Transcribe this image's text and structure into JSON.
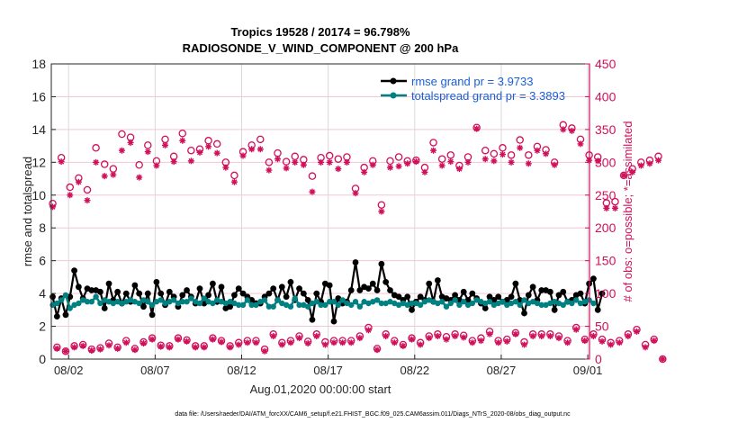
{
  "chart_data": {
    "type": "line",
    "title": "Tropics 19528 / 20174 = 96.798%",
    "subtitle": "RADIOSONDE_V_WIND_COMPONENT @ 200 hPa",
    "xlabel": "Aug.01,2020 00:00:00 start",
    "ylabel": "rmse and totalspread",
    "ylabel_right": "# of obs: o=possible; *=assimilated",
    "footer": "data file: /Users/raeder/DAI/ATM_forcXX/CAM6_setup/f.e21.FHIST_BGC.f09_025.CAM6assim.011/Diags_NTrS_2020-08/obs_diag_output.nc",
    "xlim_days": [
      0,
      31.1
    ],
    "x_ticks": [
      {
        "day": 1,
        "label": "08/02"
      },
      {
        "day": 6,
        "label": "08/07"
      },
      {
        "day": 11,
        "label": "08/12"
      },
      {
        "day": 16,
        "label": "08/17"
      },
      {
        "day": 21,
        "label": "08/22"
      },
      {
        "day": 26,
        "label": "08/27"
      },
      {
        "day": 31,
        "label": "09/01"
      }
    ],
    "ylim": [
      0,
      18
    ],
    "y_ticks": [
      0,
      2,
      4,
      6,
      8,
      10,
      12,
      14,
      16,
      18
    ],
    "ylim_right": [
      0,
      450
    ],
    "y_ticks_right": [
      0,
      50,
      100,
      150,
      200,
      250,
      300,
      350,
      400,
      450
    ],
    "grid": "x-gridlines grey, y-gridlines pink (right axis)",
    "legend": {
      "placement": "top-right",
      "entries": [
        {
          "label": "rmse grand pr = 3.9733",
          "color": "#000000"
        },
        {
          "label": "totalspread grand pr = 3.3893",
          "color": "#008080"
        }
      ]
    },
    "time_step_days": 0.25,
    "series": [
      {
        "name": "rmse",
        "axis": "left",
        "color": "#000000",
        "values": [
          3.8,
          2.6,
          3.7,
          2.7,
          3.8,
          5.4,
          4.4,
          3.7,
          4.3,
          4.2,
          4.2,
          4.1,
          3.1,
          4.6,
          3.6,
          4.1,
          3.4,
          4.0,
          3.5,
          4.5,
          4.0,
          3.2,
          4.0,
          2.7,
          4.7,
          4.0,
          3.3,
          4.1,
          3.8,
          3.2,
          3.9,
          4.2,
          3.8,
          3.4,
          4.3,
          3.4,
          3.9,
          4.6,
          3.5,
          4.4,
          3.1,
          3.2,
          3.9,
          4.3,
          4.0,
          3.8,
          3.6,
          3.4,
          3.4,
          3.8,
          4.0,
          4.3,
          3.6,
          4.4,
          3.8,
          4.7,
          3.6,
          4.3,
          4.0,
          3.6,
          2.4,
          4.0,
          3.5,
          4.6,
          4.5,
          2.3,
          3.7,
          3.4,
          3.5,
          4.2,
          5.9,
          4.2,
          4.4,
          4.3,
          4.6,
          4.2,
          5.8,
          4.7,
          4.2,
          3.9,
          3.8,
          3.6,
          3.8,
          3.0,
          3.5,
          3.8,
          3.6,
          4.6,
          3.5,
          4.8,
          3.8,
          3.7,
          3.6,
          3.9,
          3.6,
          4.1,
          3.6,
          4.0,
          3.7,
          3.4,
          3.1,
          3.8,
          3.6,
          3.8,
          3.5,
          3.6,
          3.8,
          4.6,
          3.6,
          2.8,
          3.9,
          4.4,
          3.6,
          4.2,
          4.2,
          4.1,
          3.0,
          3.9,
          4.1,
          3.5,
          3.6,
          3.9,
          4.0,
          3.4,
          4.6,
          4.9,
          3.0,
          4.0
        ],
        "note": "values approximate, 6-hourly"
      },
      {
        "name": "totalspread",
        "axis": "left",
        "color": "#008080",
        "values": [
          3.3,
          3.4,
          3.6,
          3.9,
          3.1,
          3.3,
          3.4,
          3.6,
          3.5,
          3.5,
          3.8,
          3.4,
          3.6,
          3.5,
          3.4,
          3.5,
          3.4,
          3.5,
          3.6,
          3.5,
          3.4,
          3.6,
          3.5,
          3.3,
          3.5,
          3.6,
          3.4,
          3.5,
          3.6,
          3.4,
          3.5,
          3.5,
          3.7,
          3.5,
          3.4,
          3.7,
          3.5,
          3.4,
          3.6,
          3.5,
          3.4,
          3.5,
          3.4,
          3.3,
          3.3,
          3.6,
          3.3,
          3.3,
          3.5,
          3.6,
          3.2,
          3.2,
          3.6,
          3.4,
          3.3,
          3.2,
          3.7,
          3.3,
          3.3,
          3.2,
          3.4,
          3.5,
          3.3,
          3.3,
          3.5,
          3.5,
          3.3,
          3.6,
          3.4,
          3.3,
          3.5,
          3.2,
          3.5,
          3.4,
          3.5,
          3.6,
          3.4,
          3.4,
          3.5,
          3.4,
          3.3,
          3.4,
          3.3,
          3.4,
          3.4,
          3.3,
          3.5,
          3.6,
          3.5,
          3.4,
          3.5,
          3.2,
          3.4,
          3.6,
          3.3,
          3.5,
          3.3,
          3.4,
          3.6,
          3.5,
          3.4,
          3.5,
          3.3,
          3.4,
          3.5,
          3.3,
          3.4,
          3.5,
          3.3,
          3.6,
          3.4,
          3.5,
          3.4,
          3.3,
          3.3,
          3.4,
          3.5,
          3.4,
          3.3,
          3.5,
          3.4,
          3.6,
          3.4,
          3.5,
          3.6,
          3.4
        ],
        "note": "values approximate, 6-hourly"
      },
      {
        "name": "obs possible",
        "axis": "right",
        "marker": "o",
        "color": "#d0105a",
        "values": [
          237,
          18,
          307,
          12,
          262,
          20,
          276,
          22,
          258,
          15,
          322,
          17,
          297,
          24,
          290,
          18,
          343,
          28,
          338,
          16,
          296,
          26,
          326,
          32,
          302,
          21,
          335,
          20,
          309,
          32,
          344,
          29,
          318,
          20,
          320,
          20,
          333,
          32,
          328,
          28,
          300,
          20,
          280,
          25,
          316,
          28,
          326,
          28,
          335,
          15,
          300,
          38,
          314,
          25,
          301,
          28,
          309,
          35,
          304,
          27,
          279,
          38,
          307,
          26,
          310,
          28,
          305,
          28,
          308,
          28,
          260,
          35,
          292,
          48,
          302,
          16,
          235,
          38,
          302,
          28,
          308,
          22,
          302,
          32,
          303,
          25,
          292,
          35,
          330,
          38,
          305,
          34,
          311,
          38,
          295,
          36,
          308,
          28,
          353,
          32,
          318,
          42,
          313,
          28,
          322,
          30,
          311,
          40,
          334,
          26,
          311,
          38,
          324,
          38,
          319,
          38,
          300,
          35,
          357,
          28,
          352,
          48,
          335,
          30,
          311,
          38,
          308,
          30,
          238,
          25,
          240,
          28,
          280,
          38,
          290,
          45,
          300,
          22,
          303,
          30,
          309,
          0
        ],
        "note": "values approximate"
      },
      {
        "name": "obs assimilated",
        "axis": "right",
        "marker": "*",
        "color": "#d0105a",
        "values": [
          232,
          16,
          301,
          12,
          250,
          18,
          270,
          20,
          242,
          13,
          300,
          15,
          279,
          21,
          281,
          16,
          318,
          25,
          330,
          14,
          277,
          24,
          316,
          30,
          295,
          19,
          326,
          18,
          301,
          30,
          333,
          27,
          302,
          18,
          315,
          18,
          324,
          30,
          314,
          26,
          292,
          18,
          270,
          22,
          310,
          25,
          320,
          25,
          320,
          12,
          288,
          35,
          305,
          22,
          291,
          25,
          300,
          32,
          296,
          24,
          255,
          35,
          300,
          22,
          300,
          25,
          290,
          25,
          300,
          25,
          253,
          32,
          285,
          44,
          296,
          14,
          225,
          35,
          292,
          25,
          294,
          20,
          298,
          30,
          301,
          22,
          285,
          32,
          318,
          35,
          295,
          30,
          301,
          35,
          290,
          33,
          300,
          25,
          351,
          28,
          305,
          38,
          302,
          25,
          312,
          27,
          300,
          38,
          322,
          22,
          298,
          35,
          318,
          35,
          313,
          35,
          296,
          32,
          350,
          25,
          348,
          45,
          328,
          28,
          303,
          35,
          302,
          27,
          230,
          22,
          230,
          25,
          280,
          35,
          285,
          42,
          295,
          18,
          298,
          28,
          303,
          0
        ],
        "note": "values approximate"
      }
    ]
  }
}
